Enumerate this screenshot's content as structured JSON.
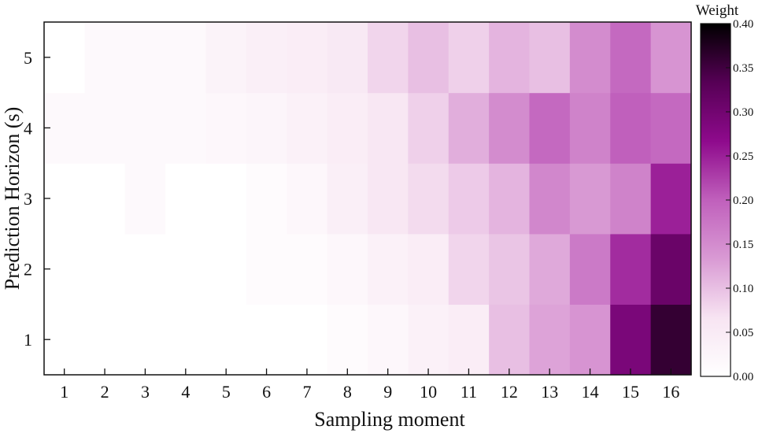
{
  "chart_data": {
    "type": "heatmap",
    "title": "",
    "xlabel": "Sampling moment",
    "ylabel": "Prediction Horizon (s)",
    "x_categories": [
      "1",
      "2",
      "3",
      "4",
      "5",
      "6",
      "7",
      "8",
      "9",
      "10",
      "11",
      "12",
      "13",
      "14",
      "15",
      "16"
    ],
    "y_categories": [
      "1",
      "2",
      "3",
      "4",
      "5"
    ],
    "values": [
      [
        0.0,
        0.0,
        0.0,
        0.0,
        0.0,
        0.0,
        0.0,
        0.01,
        0.02,
        0.035,
        0.045,
        0.1,
        0.125,
        0.14,
        0.29,
        0.36
      ],
      [
        0.0,
        0.0,
        0.0,
        0.0,
        0.0,
        0.01,
        0.01,
        0.02,
        0.035,
        0.045,
        0.08,
        0.095,
        0.12,
        0.17,
        0.24,
        0.31
      ],
      [
        0.0,
        0.0,
        0.015,
        0.0,
        0.0,
        0.01,
        0.02,
        0.04,
        0.06,
        0.075,
        0.09,
        0.11,
        0.155,
        0.135,
        0.16,
        0.25
      ],
      [
        0.015,
        0.015,
        0.015,
        0.015,
        0.02,
        0.025,
        0.035,
        0.045,
        0.06,
        0.085,
        0.115,
        0.15,
        0.19,
        0.16,
        0.2,
        0.19
      ],
      [
        0.0,
        0.015,
        0.015,
        0.015,
        0.03,
        0.04,
        0.045,
        0.055,
        0.08,
        0.1,
        0.085,
        0.11,
        0.1,
        0.15,
        0.19,
        0.14
      ]
    ],
    "colorbar": {
      "title": "Weight",
      "min": 0.0,
      "max": 0.4,
      "ticks": [
        "0.00",
        "0.05",
        "0.10",
        "0.15",
        "0.20",
        "0.25",
        "0.30",
        "0.35",
        "0.40"
      ],
      "colors": [
        "#ffffff",
        "#f7e4f2",
        "#d99ad4",
        "#c060bc",
        "#8e0a8c",
        "#560055",
        "#000000"
      ]
    },
    "grid": false,
    "legend": "colorbar-right"
  }
}
